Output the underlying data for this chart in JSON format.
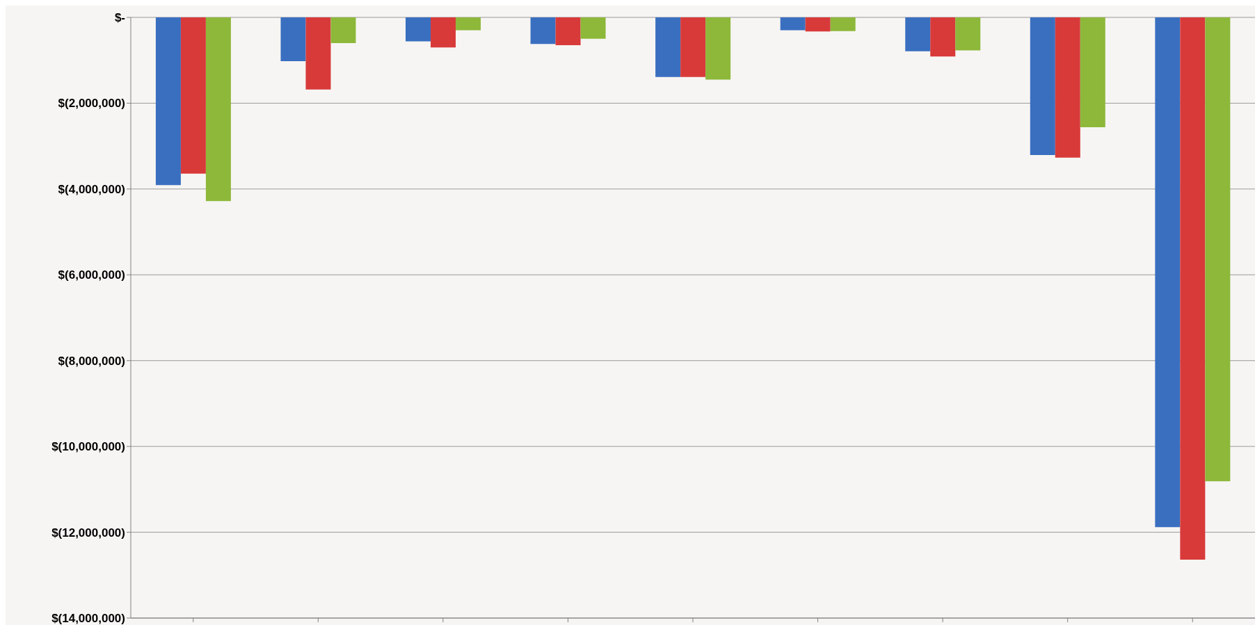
{
  "chart_data": {
    "type": "bar",
    "categories": [
      null,
      null,
      null,
      null,
      null,
      null,
      null,
      null,
      null
    ],
    "series": [
      {
        "color": "#3a6fc0",
        "values": [
          -3910000,
          -1020000,
          -560000,
          -620000,
          -1390000,
          -300000,
          -790000,
          -3210000,
          -11880000
        ]
      },
      {
        "color": "#d83a3a",
        "values": [
          -3640000,
          -1680000,
          -700000,
          -650000,
          -1390000,
          -330000,
          -910000,
          -3270000,
          -12640000
        ]
      },
      {
        "color": "#8db83a",
        "values": [
          -4280000,
          -600000,
          -300000,
          -500000,
          -1450000,
          -320000,
          -770000,
          -2560000,
          -10810000
        ]
      }
    ],
    "ylim": [
      -14000000,
      0
    ],
    "yticks": [
      {
        "value": -14000000,
        "label": "$(14,000,000)"
      },
      {
        "value": -12000000,
        "label": "$(12,000,000)"
      },
      {
        "value": -10000000,
        "label": "$(10,000,000)"
      },
      {
        "value": -8000000,
        "label": "$(8,000,000)"
      },
      {
        "value": -6000000,
        "label": "$(6,000,000)"
      },
      {
        "value": -4000000,
        "label": "$(4,000,000)"
      },
      {
        "value": -2000000,
        "label": "$(2,000,000)"
      },
      {
        "value": 0,
        "label": "$-"
      }
    ],
    "grid": "y",
    "tick_labels": "y",
    "legend": false
  }
}
